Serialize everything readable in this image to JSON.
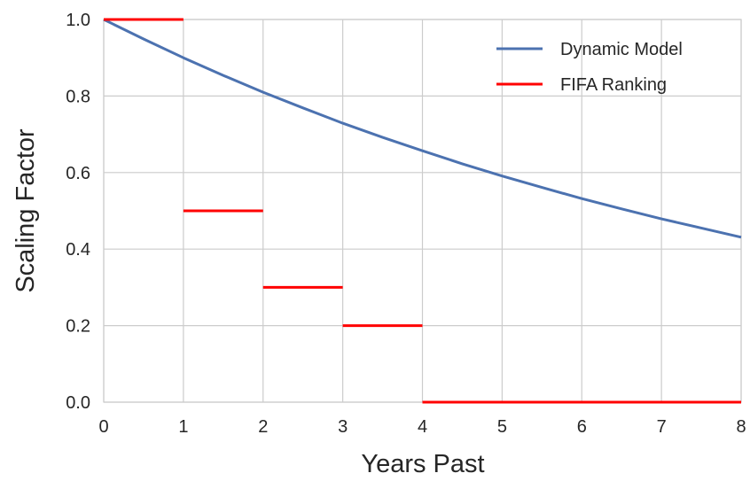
{
  "chart_data": {
    "type": "line",
    "title": "",
    "xlabel": "Years Past",
    "ylabel": "Scaling Factor",
    "xlim": [
      0,
      8
    ],
    "ylim": [
      0,
      1.0
    ],
    "x_ticks": [
      "0",
      "1",
      "2",
      "3",
      "4",
      "5",
      "6",
      "7",
      "8"
    ],
    "y_ticks": [
      "0.0",
      "0.2",
      "0.4",
      "0.6",
      "0.8",
      "1.0"
    ],
    "grid": true,
    "legend_position": "top-right",
    "series": [
      {
        "name": "Dynamic Model",
        "color": "#4c72b0",
        "style": "curve",
        "x": [
          0,
          0.5,
          1,
          1.5,
          2,
          2.5,
          3,
          3.5,
          4,
          4.5,
          5,
          5.5,
          6,
          6.5,
          7,
          7.5,
          8
        ],
        "y": [
          1.0,
          0.949,
          0.9,
          0.854,
          0.81,
          0.769,
          0.729,
          0.692,
          0.657,
          0.623,
          0.591,
          0.561,
          0.532,
          0.505,
          0.479,
          0.455,
          0.431
        ]
      },
      {
        "name": "FIFA Ranking",
        "color": "#ff0000",
        "style": "step",
        "segments": [
          {
            "x0": 0,
            "x1": 1,
            "y": 1.0
          },
          {
            "x0": 1,
            "x1": 2,
            "y": 0.5
          },
          {
            "x0": 2,
            "x1": 3,
            "y": 0.3
          },
          {
            "x0": 3,
            "x1": 4,
            "y": 0.2
          },
          {
            "x0": 4,
            "x1": 8,
            "y": 0.0
          }
        ]
      }
    ]
  }
}
